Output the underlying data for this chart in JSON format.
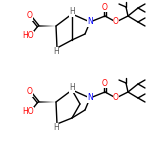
{
  "bg_color": "#ffffff",
  "line_color": "#000000",
  "bond_width": 1.0,
  "font_size": 5.5,
  "fig_size": [
    1.52,
    1.52
  ],
  "dpi": 100,
  "atom_colors": {
    "O": "#ff0000",
    "N": "#0000ff",
    "C": "#000000",
    "H": "#555555"
  }
}
